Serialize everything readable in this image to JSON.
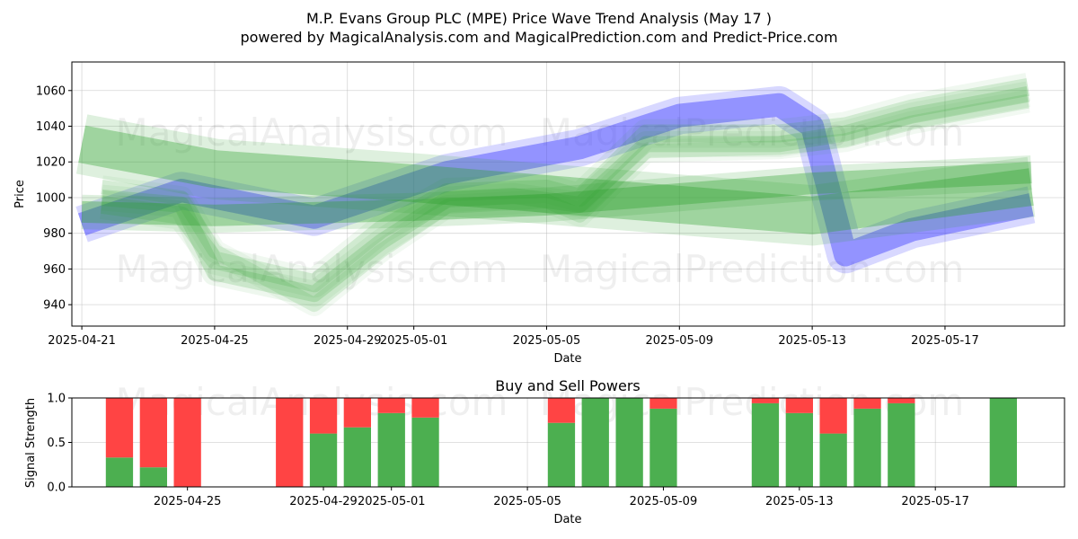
{
  "title_line1": "M.P. Evans Group PLC (MPE) Price Wave Trend Analysis (May 17 )",
  "title_line2": "powered by MagicalAnalysis.com and MagicalPrediction.com and Predict-Price.com",
  "watermarks": [
    "MagicalAnalysis.com",
    "MagicalPrediction.com"
  ],
  "colors": {
    "green": "#2ca02c",
    "blue": "#4040ff",
    "buy": "#4caf50",
    "sell": "#ff4444",
    "grid": "#b0b0b0"
  },
  "chart_data": [
    {
      "type": "area",
      "name": "price-wave",
      "xlabel": "Date",
      "ylabel": "Price",
      "ylim": [
        928,
        1076
      ],
      "yticks": [
        940,
        960,
        980,
        1000,
        1020,
        1040,
        1060
      ],
      "xlim": [
        "2025-04-20.7",
        "2025-05-20.6"
      ],
      "xticks": [
        "2025-04-21",
        "2025-04-25",
        "2025-04-29",
        "2025-05-01",
        "2025-05-05",
        "2025-05-09",
        "2025-05-13",
        "2025-05-17"
      ],
      "grid": true,
      "bands": [
        {
          "color": "blue",
          "opacity": 0.45,
          "points": [
            [
              "2025-04-21",
              985
            ],
            [
              "2025-04-24",
              1004
            ],
            [
              "2025-04-28",
              989
            ],
            [
              "2025-05-02",
              1014
            ],
            [
              "2025-05-06",
              1028
            ],
            [
              "2025-05-09",
              1046
            ],
            [
              "2025-05-12",
              1052
            ],
            [
              "2025-05-13",
              1040
            ],
            [
              "2025-05-14",
              968
            ],
            [
              "2025-05-16",
              982
            ],
            [
              "2025-05-19.6",
              996
            ]
          ],
          "width": 26
        },
        {
          "color": "green",
          "opacity": 0.35,
          "points": [
            [
              "2025-04-21",
              1030
            ],
            [
              "2025-04-25",
              1016
            ],
            [
              "2025-05-01",
              1008
            ],
            [
              "2025-05-05",
              1002
            ],
            [
              "2025-05-13",
              990
            ],
            [
              "2025-05-19.6",
              1006
            ]
          ],
          "width": 42
        },
        {
          "color": "green",
          "opacity": 0.35,
          "points": [
            [
              "2025-04-21",
              992
            ],
            [
              "2025-04-25",
              990
            ],
            [
              "2025-05-01",
              993
            ],
            [
              "2025-05-05",
              996
            ],
            [
              "2025-05-13",
              1008
            ],
            [
              "2025-05-19.6",
              1014
            ]
          ],
          "width": 24
        },
        {
          "color": "green",
          "opacity": 0.18,
          "points": [
            [
              "2025-04-21.6",
              1000
            ],
            [
              "2025-04-24",
              996
            ],
            [
              "2025-04-25",
              958
            ],
            [
              "2025-04-28",
              946
            ],
            [
              "2025-04-30",
              975
            ],
            [
              "2025-05-02",
              999
            ],
            [
              "2025-05-04",
              1001
            ],
            [
              "2025-05-06",
              996
            ],
            [
              "2025-05-08",
              1030
            ],
            [
              "2025-05-12",
              1030
            ],
            [
              "2025-05-14",
              1036
            ],
            [
              "2025-05-16",
              1046
            ],
            [
              "2025-05-19.5",
              1058
            ]
          ],
          "width": 18
        },
        {
          "color": "green",
          "opacity": 0.16,
          "points": [
            [
              "2025-04-21.6",
              996
            ],
            [
              "2025-04-24",
              990
            ],
            [
              "2025-04-25",
              965
            ],
            [
              "2025-04-28",
              952
            ],
            [
              "2025-04-30",
              982
            ],
            [
              "2025-05-02",
              1003
            ],
            [
              "2025-05-05",
              1005
            ],
            [
              "2025-05-06",
              1000
            ],
            [
              "2025-05-08",
              1036
            ],
            [
              "2025-05-12",
              1036
            ],
            [
              "2025-05-14",
              1040
            ],
            [
              "2025-05-16",
              1050
            ],
            [
              "2025-05-19.5",
              1062
            ]
          ],
          "width": 20
        },
        {
          "color": "green",
          "opacity": 0.14,
          "points": [
            [
              "2025-04-21.6",
              1006
            ],
            [
              "2025-04-24",
              1000
            ],
            [
              "2025-04-25",
              970
            ],
            [
              "2025-04-28",
              940
            ],
            [
              "2025-04-30",
              970
            ],
            [
              "2025-05-02",
              995
            ],
            [
              "2025-05-05",
              998
            ],
            [
              "2025-05-06",
              990
            ],
            [
              "2025-05-08",
              1026
            ],
            [
              "2025-05-12",
              1028
            ],
            [
              "2025-05-14",
              1032
            ],
            [
              "2025-05-16",
              1042
            ],
            [
              "2025-05-19.5",
              1054
            ]
          ],
          "width": 16
        }
      ]
    },
    {
      "type": "bar",
      "name": "buy-sell-powers",
      "title": "Buy and Sell Powers",
      "xlabel": "Date",
      "ylabel": "Signal Strength",
      "ylim": [
        0,
        1
      ],
      "yticks": [
        "0.0",
        "0.5",
        "1.0"
      ],
      "xticks": [
        "2025-04-25",
        "2025-04-29",
        "2025-05-01",
        "2025-05-05",
        "2025-05-09",
        "2025-05-13",
        "2025-05-17"
      ],
      "categories": [
        "2025-04-23",
        "2025-04-24",
        "2025-04-25",
        "2025-04-28",
        "2025-04-29",
        "2025-04-30",
        "2025-05-01",
        "2025-05-02",
        "2025-05-06",
        "2025-05-07",
        "2025-05-08",
        "2025-05-09",
        "2025-05-12",
        "2025-05-13",
        "2025-05-14",
        "2025-05-15",
        "2025-05-16",
        "2025-05-19"
      ],
      "series": [
        {
          "name": "Buy",
          "values": [
            0.33,
            0.22,
            0.0,
            0.0,
            0.6,
            0.67,
            0.83,
            0.78,
            0.72,
            1.0,
            1.0,
            0.88,
            0.94,
            0.83,
            0.6,
            0.88,
            0.94,
            1.0
          ]
        },
        {
          "name": "Sell",
          "values": [
            0.67,
            0.78,
            1.0,
            1.0,
            0.4,
            0.33,
            0.17,
            0.22,
            0.28,
            0.0,
            0.0,
            0.12,
            0.06,
            0.17,
            0.4,
            0.12,
            0.06,
            0.0
          ]
        }
      ]
    }
  ]
}
